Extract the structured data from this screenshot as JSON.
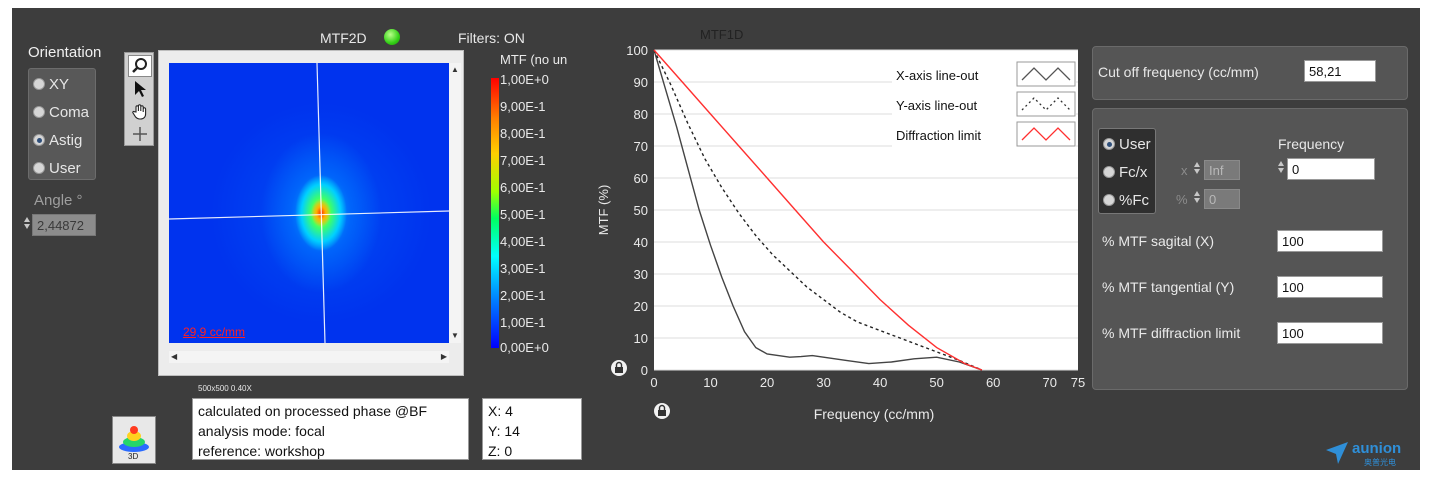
{
  "orientation": {
    "title": "Orientation",
    "options": [
      {
        "label": "XY",
        "selected": false
      },
      {
        "label": "Coma",
        "selected": false
      },
      {
        "label": "Astig",
        "selected": true
      },
      {
        "label": "User",
        "selected": false
      }
    ],
    "angle_label": "Angle °",
    "angle_value": "2,44872"
  },
  "tools": {
    "items": [
      {
        "icon": "zoom-icon",
        "active": true
      },
      {
        "icon": "pointer-icon",
        "active": false
      },
      {
        "icon": "hand-icon",
        "active": false
      },
      {
        "icon": "crosshair-icon",
        "active": false
      }
    ]
  },
  "mtf2d": {
    "title": "MTF2D",
    "indicator_color": "#33d016",
    "filters_label": "Filters: ON",
    "scale_text": "29,9 cc/mm",
    "colorbar_title": "MTF (no un",
    "colorbar_ticks": [
      "1,00E+0",
      "9,00E-1",
      "8,00E-1",
      "7,00E-1",
      "6,00E-1",
      "5,00E-1",
      "4,00E-1",
      "3,00E-1",
      "2,00E-1",
      "1,00E-1",
      "0,00E+0"
    ],
    "resolution_caption": "500x500 0.40X"
  },
  "info_box": {
    "lines": [
      "calculated on processed phase @BF",
      "analysis mode: focal",
      "reference: workshop"
    ]
  },
  "coord_box": {
    "lines": [
      "X: 4",
      "Y: 14",
      "Z: 0"
    ]
  },
  "button_3d": {
    "label": "3D"
  },
  "chart_data": {
    "type": "line",
    "title": "MTF1D",
    "xlabel": "Frequency (cc/mm)",
    "ylabel": "MTF (%)",
    "xlim": [
      0,
      75
    ],
    "ylim": [
      0,
      100
    ],
    "xticks": [
      0,
      10,
      20,
      30,
      40,
      50,
      60,
      70,
      75
    ],
    "yticks": [
      0,
      10,
      20,
      30,
      40,
      50,
      60,
      70,
      80,
      90,
      100
    ],
    "grid": true,
    "legend_position": "top-right",
    "series": [
      {
        "name": "X-axis line-out",
        "color": "#444444",
        "dash": "solid",
        "x": [
          0,
          2,
          4,
          6,
          8,
          10,
          12,
          14,
          16,
          18,
          20,
          22,
          24,
          26,
          28,
          30,
          34,
          38,
          42,
          46,
          50,
          54,
          58
        ],
        "y": [
          100,
          88,
          76,
          63,
          50,
          39,
          29,
          20,
          12,
          7,
          5,
          4.5,
          4,
          4.2,
          4.5,
          4,
          3,
          2,
          2.5,
          3.5,
          4,
          2.5,
          0
        ]
      },
      {
        "name": "Y-axis line-out",
        "color": "#222222",
        "dash": "dashed",
        "x": [
          0,
          3,
          6,
          9,
          12,
          15,
          18,
          21,
          24,
          27,
          30,
          33,
          36,
          39,
          42,
          45,
          48,
          51,
          54,
          58
        ],
        "y": [
          100,
          89,
          77,
          66,
          57,
          49,
          42,
          36,
          31,
          26,
          22,
          18,
          15,
          13,
          11,
          9,
          7,
          5,
          3,
          0
        ]
      },
      {
        "name": "Diffraction limit",
        "color": "#ff3030",
        "dash": "solid",
        "x": [
          0,
          5,
          10,
          15,
          20,
          25,
          30,
          35,
          40,
          45,
          50,
          55,
          58
        ],
        "y": [
          100,
          90,
          80,
          70,
          60,
          50,
          40,
          31,
          22,
          14,
          7,
          2,
          0
        ]
      }
    ]
  },
  "cutoff": {
    "label": "Cut off frequency (cc/mm)",
    "value": "58,21"
  },
  "freq_mode": {
    "options": [
      {
        "label": "User",
        "selected": true
      },
      {
        "label": "Fc/x",
        "selected": false
      },
      {
        "label": "%Fc",
        "selected": false
      }
    ],
    "x_prefix": "x",
    "x_value": "Inf",
    "pct_prefix": "%",
    "pct_value": "0",
    "frequency_label": "Frequency",
    "frequency_value": "0"
  },
  "mtf_rows": [
    {
      "label": "% MTF sagital (X)",
      "value": "100"
    },
    {
      "label": "% MTF tangential (Y)",
      "value": "100"
    },
    {
      "label": "% MTF diffraction limit",
      "value": "100"
    }
  ],
  "logo": {
    "text": "aunion",
    "subtext": "奥普光电"
  }
}
